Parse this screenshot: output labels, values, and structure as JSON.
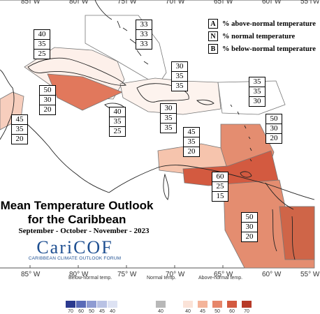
{
  "title": {
    "line1": "Mean Temperature Outlook",
    "line2": "for the Caribbean",
    "season": "September - October - November - 2023"
  },
  "logo": {
    "name": "CariCOF",
    "subtitle": "CARIBBEAN CLIMATE OUTLOOK FORUM"
  },
  "legend": [
    {
      "key": "A",
      "text": "% above-normal temperature"
    },
    {
      "key": "N",
      "text": "% normal temperature"
    },
    {
      "key": "B",
      "text": "% below-normal temperature"
    }
  ],
  "longitude_labels": [
    "85° W",
    "80° W",
    "75° W",
    "70° W",
    "65° W",
    "60° W",
    "55° W"
  ],
  "probability_boxes": [
    {
      "region": "central-america-west",
      "A": "45",
      "N": "35",
      "B": "20"
    },
    {
      "region": "cayman-jamaica",
      "A": "50",
      "N": "30",
      "B": "20"
    },
    {
      "region": "cuba",
      "A": "40",
      "N": "35",
      "B": "25"
    },
    {
      "region": "jamaica-south",
      "A": "40",
      "N": "35",
      "B": "25"
    },
    {
      "region": "bahamas-north",
      "A": "33",
      "N": "33",
      "B": "33"
    },
    {
      "region": "turks-caicos",
      "A": "30",
      "N": "35",
      "B": "35"
    },
    {
      "region": "hispaniola",
      "A": "30",
      "N": "35",
      "B": "35"
    },
    {
      "region": "northern-leewards",
      "A": "35",
      "N": "35",
      "B": "30"
    },
    {
      "region": "puerto-rico-vi",
      "A": "45",
      "N": "35",
      "B": "20"
    },
    {
      "region": "windwards",
      "A": "50",
      "N": "30",
      "B": "20"
    },
    {
      "region": "trinidad-tobago",
      "A": "60",
      "N": "25",
      "B": "15"
    },
    {
      "region": "guianas",
      "A": "50",
      "N": "30",
      "B": "20"
    }
  ],
  "scale": {
    "below_label": "Below-normal temp.",
    "normal_label": "Normal temp.",
    "above_label": "Above-normal temp.",
    "below_values": [
      "70",
      "60",
      "50",
      "45",
      "40"
    ],
    "normal_values": [
      "40"
    ],
    "above_values": [
      "40",
      "45",
      "50",
      "60",
      "70"
    ],
    "colors": {
      "below": [
        "#2b3a8f",
        "#5a6bb8",
        "#8e9bd2",
        "#b9c2e4",
        "#dde2f3"
      ],
      "normal": [
        "#b8b8b8"
      ],
      "above": [
        "#fbe3d8",
        "#f4b49a",
        "#e6866a",
        "#d35a40",
        "#b73a28"
      ]
    }
  }
}
